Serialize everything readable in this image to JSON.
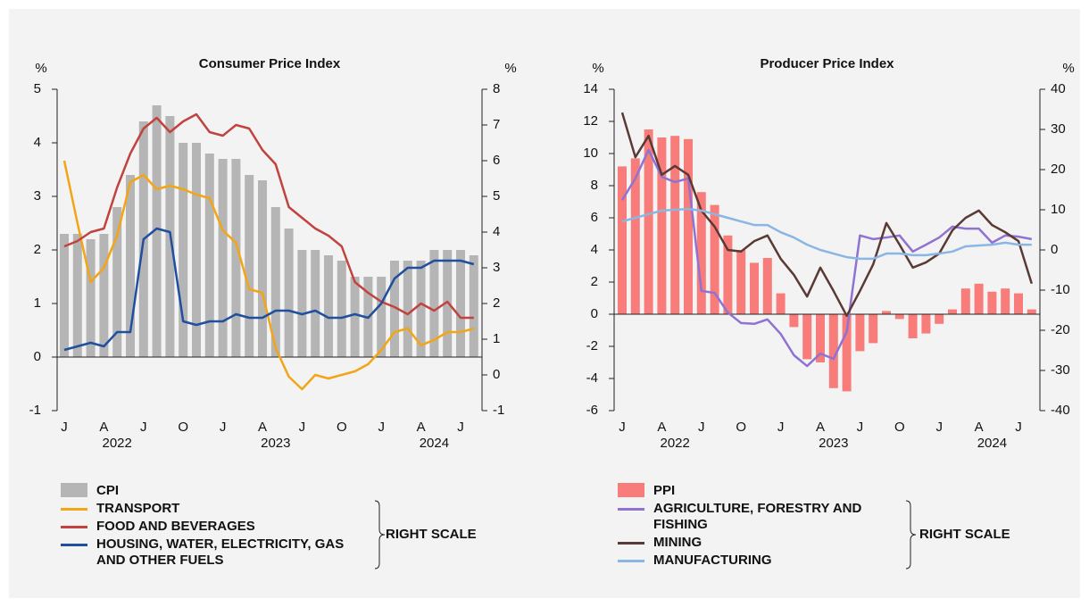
{
  "chart_data": [
    {
      "type": "combo",
      "title": "Consumer Price Index",
      "y_label": "%",
      "y2_label": "%",
      "categories": [
        "J",
        null,
        null,
        "A",
        null,
        null,
        "J",
        null,
        null,
        "O",
        null,
        null,
        "J",
        null,
        null,
        "A",
        null,
        null,
        "J",
        null,
        null,
        "O",
        null,
        null,
        "J",
        null,
        null,
        "A",
        null,
        null,
        "J",
        null
      ],
      "year_labels": [
        "2022",
        "2023",
        "2024"
      ],
      "ylim": [
        -1,
        5
      ],
      "yticks": [
        -1,
        0,
        1,
        2,
        3,
        4,
        5
      ],
      "y2lim": [
        -1,
        8
      ],
      "y2ticks": [
        -1,
        0,
        1,
        2,
        3,
        4,
        5,
        6,
        7,
        8
      ],
      "right_scale_label": "RIGHT SCALE",
      "series": [
        {
          "name": "CPI",
          "type": "bar",
          "color": "#b5b5b5",
          "values": [
            2.3,
            2.3,
            2.2,
            2.3,
            2.8,
            3.4,
            4.4,
            4.7,
            4.5,
            4.0,
            4.0,
            3.8,
            3.7,
            3.7,
            3.4,
            3.3,
            2.8,
            2.4,
            2.0,
            2.0,
            1.9,
            1.8,
            1.5,
            1.5,
            1.5,
            1.8,
            1.8,
            1.8,
            2.0,
            2.0,
            2.0,
            1.9
          ]
        },
        {
          "name": "TRANSPORT",
          "type": "line",
          "axis": "y2",
          "color": "#f2a516",
          "values": [
            6.0,
            4.25,
            2.6,
            3.0,
            3.9,
            5.4,
            5.6,
            5.2,
            5.3,
            5.2,
            5.05,
            4.95,
            4.05,
            3.7,
            2.4,
            2.3,
            0.75,
            -0.05,
            -0.4,
            0.0,
            -0.1,
            0.0,
            0.1,
            0.3,
            0.7,
            1.2,
            1.3,
            0.83,
            0.98,
            1.2,
            1.2,
            1.3
          ]
        },
        {
          "name": "FOOD AND BEVERAGES",
          "type": "line",
          "axis": "y2",
          "color": "#c0433f",
          "values": [
            3.6,
            3.75,
            4.0,
            4.1,
            5.25,
            6.2,
            6.9,
            7.2,
            6.8,
            7.1,
            7.3,
            6.8,
            6.7,
            7.0,
            6.9,
            6.3,
            5.9,
            4.7,
            4.4,
            4.1,
            3.9,
            3.6,
            2.6,
            2.3,
            2.05,
            1.9,
            1.7,
            2.0,
            1.8,
            2.05,
            1.6,
            1.6
          ]
        },
        {
          "name": "HOUSING, WATER, ELECTRICITY, GAS AND OTHER FUELS",
          "type": "line",
          "axis": "y2",
          "color": "#1f4f9e",
          "values": [
            0.7,
            0.8,
            0.9,
            0.8,
            1.2,
            1.2,
            3.8,
            4.1,
            4.0,
            1.5,
            1.4,
            1.5,
            1.5,
            1.7,
            1.6,
            1.6,
            1.8,
            1.8,
            1.7,
            1.8,
            1.6,
            1.6,
            1.7,
            1.6,
            2.0,
            2.7,
            3.0,
            3.0,
            3.2,
            3.2,
            3.2,
            3.1
          ]
        }
      ]
    },
    {
      "type": "combo",
      "title": "Producer Price Index",
      "y_label": "%",
      "y2_label": "%",
      "categories": [
        "J",
        null,
        null,
        "A",
        null,
        null,
        "J",
        null,
        null,
        "O",
        null,
        null,
        "J",
        null,
        null,
        "A",
        null,
        null,
        "J",
        null,
        null,
        "O",
        null,
        null,
        "J",
        null,
        null,
        "A",
        null,
        null,
        "J",
        null
      ],
      "year_labels": [
        "2022",
        "2023",
        "2024"
      ],
      "ylim": [
        -6,
        14
      ],
      "yticks": [
        -6,
        -4,
        -2,
        0,
        2,
        4,
        6,
        8,
        10,
        12,
        14
      ],
      "y2lim": [
        -40,
        40
      ],
      "y2ticks": [
        -40,
        -30,
        -20,
        -10,
        0,
        10,
        20,
        30,
        40
      ],
      "right_scale_label": "RIGHT SCALE",
      "series": [
        {
          "name": "PPI",
          "type": "bar",
          "color": "#f87c7a",
          "values": [
            9.2,
            9.7,
            11.5,
            11.0,
            11.1,
            10.9,
            7.6,
            6.8,
            4.9,
            4.0,
            3.2,
            3.5,
            1.3,
            -0.8,
            -2.8,
            -3.0,
            -4.6,
            -4.8,
            -2.3,
            -1.8,
            0.2,
            -0.3,
            -1.5,
            -1.2,
            -0.6,
            0.3,
            1.6,
            1.9,
            1.4,
            1.6,
            1.3,
            0.3
          ]
        },
        {
          "name": "AGRICULTURE, FORESTRY AND FISHING",
          "type": "line",
          "axis": "y2",
          "color": "#8f72d1",
          "values": [
            12.4,
            17.8,
            24.9,
            18.2,
            16.9,
            17.8,
            -10.2,
            -10.7,
            -15.6,
            -18.2,
            -18.4,
            -17.3,
            -20.9,
            -26.2,
            -28.9,
            -25.8,
            -27.1,
            -20.4,
            3.6,
            2.7,
            3.1,
            3.6,
            -0.4,
            1.3,
            3.1,
            5.8,
            5.3,
            5.3,
            1.8,
            3.6,
            3.3,
            2.7
          ]
        },
        {
          "name": "MINING",
          "type": "line",
          "axis": "y2",
          "color": "#5a3a35",
          "values": [
            34.2,
            23.1,
            28.4,
            18.7,
            20.9,
            18.7,
            9.8,
            5.8,
            0,
            -0.4,
            2.2,
            3.6,
            -2.2,
            -6.2,
            -11.6,
            -4.4,
            -10.2,
            -16.4,
            -10.2,
            -3.6,
            6.7,
            1.3,
            -4.4,
            -3.1,
            -0.9,
            4.9,
            8.0,
            9.8,
            6.2,
            4.4,
            2.2,
            -8.4
          ]
        },
        {
          "name": "MANUFACTURING",
          "type": "line",
          "axis": "y2",
          "color": "#8ab6e4",
          "values": [
            7.1,
            8.0,
            8.9,
            9.8,
            10.0,
            10.2,
            9.8,
            8.9,
            8.0,
            7.1,
            6.2,
            6.2,
            4.4,
            3.1,
            1.3,
            0,
            -0.9,
            -1.8,
            -2.2,
            -2.2,
            -0.9,
            -0.9,
            -1.3,
            -1.3,
            -0.9,
            -0.4,
            0.9,
            1.1,
            1.3,
            1.8,
            1.3,
            1.3
          ]
        }
      ]
    }
  ]
}
